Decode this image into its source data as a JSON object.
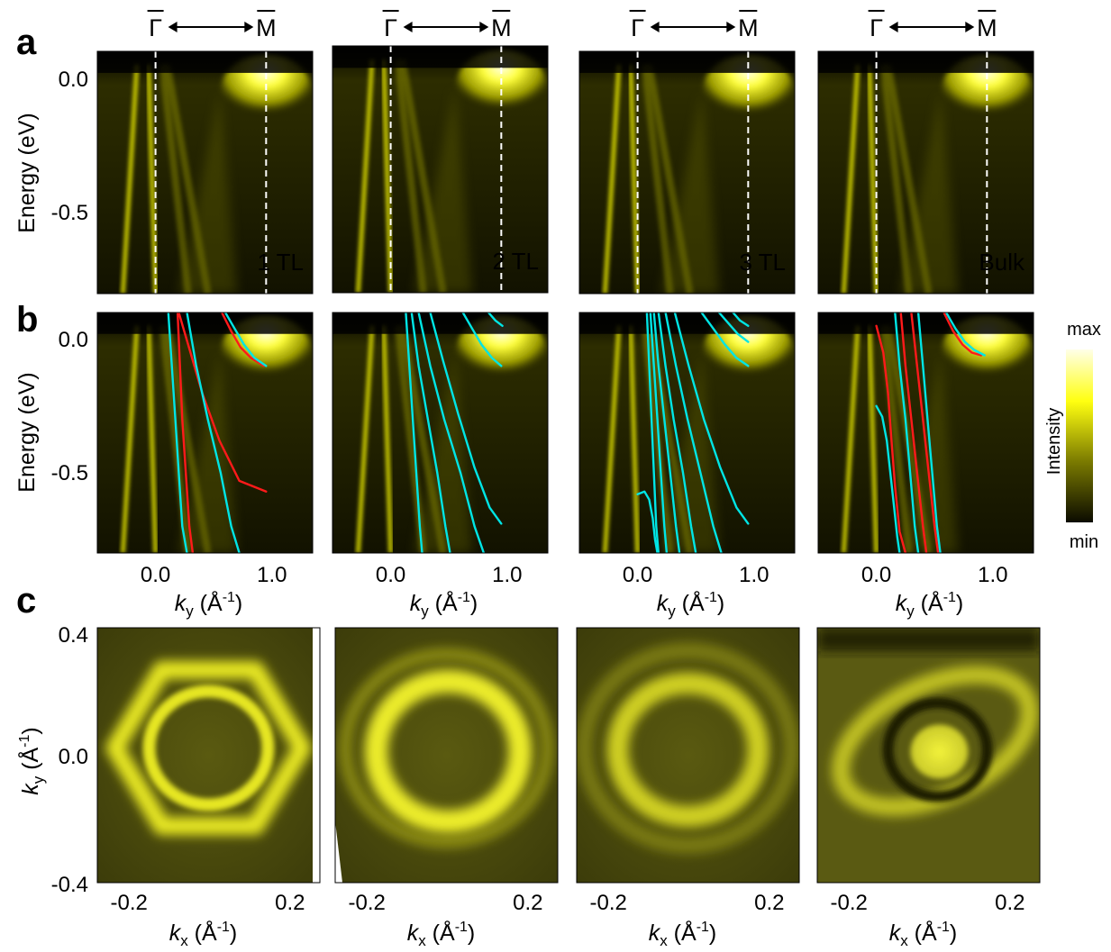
{
  "panel_labels": [
    "a",
    "b",
    "c"
  ],
  "symmetry_points": {
    "gamma": "Γ",
    "m": "M"
  },
  "samples": [
    "1 TL",
    "2 TL",
    "3 TL",
    "Bulk"
  ],
  "axes": {
    "energy_label": "Energy (eV)",
    "energy_ticks": [
      "0.0",
      "-0.5"
    ],
    "ky_symbol": "k",
    "ky_sub": "y",
    "kx_symbol": "k",
    "kx_sub": "x",
    "k_unit_open": " (Å",
    "k_unit_exp": "-1",
    "k_unit_close": ")",
    "ky_ticks": [
      "0.0",
      "1.0"
    ],
    "kx_ticks": [
      "-0.2",
      "0.2"
    ],
    "ky_map_ticks": [
      "0.4",
      "0.0",
      "-0.4"
    ]
  },
  "colorbar": {
    "max": "max",
    "min": "min",
    "label": "Intensity",
    "colors": [
      "#0b0b00",
      "#7a7a00",
      "#ffff10",
      "#ffffe8"
    ]
  },
  "chart_data": [
    {
      "type": "heatmap",
      "panel": "a",
      "title": "",
      "xlabel": "ky (Å-1)",
      "ylabel": "Energy (eV)",
      "xlim": [
        -0.5,
        1.35
      ],
      "ylim": [
        -0.8,
        0.1
      ],
      "samples": [
        "1 TL",
        "2 TL",
        "3 TL",
        "Bulk"
      ],
      "markers": [
        {
          "label": "Γ",
          "x": 0.0
        },
        {
          "label": "M",
          "x": 0.95
        }
      ]
    },
    {
      "type": "line",
      "panel": "b",
      "title": "",
      "xlabel": "ky (Å-1)",
      "ylabel": "Energy (eV)",
      "xlim": [
        -0.5,
        1.35
      ],
      "ylim": [
        -0.8,
        0.1
      ],
      "background": "ARPES intensity heatmap",
      "subplots": [
        {
          "sample": "1 TL",
          "series": [
            {
              "color": "#00e5e5",
              "x": [
                0.11,
                0.14,
                0.17,
                0.2,
                0.23,
                0.27
              ],
              "y": [
                0.1,
                -0.1,
                -0.3,
                -0.5,
                -0.7,
                -0.8
              ]
            },
            {
              "color": "#ff1a1a",
              "x": [
                0.19,
                0.21,
                0.23,
                0.26,
                0.29,
                0.32
              ],
              "y": [
                0.1,
                -0.1,
                -0.3,
                -0.5,
                -0.7,
                -0.8
              ]
            },
            {
              "color": "#ff1a1a",
              "x": [
                0.2,
                0.3,
                0.4,
                0.55,
                0.72,
                0.95
              ],
              "y": [
                0.1,
                -0.05,
                -0.2,
                -0.38,
                -0.53,
                -0.57
              ]
            },
            {
              "color": "#00e5e5",
              "x": [
                0.27,
                0.35,
                0.45,
                0.56,
                0.65,
                0.72
              ],
              "y": [
                0.1,
                -0.1,
                -0.3,
                -0.5,
                -0.7,
                -0.8
              ]
            },
            {
              "color": "#ff1a1a",
              "x": [
                0.57,
                0.65,
                0.73,
                0.82,
                0.93
              ],
              "y": [
                0.1,
                0.03,
                -0.03,
                -0.07,
                -0.1
              ]
            },
            {
              "color": "#00e5e5",
              "x": [
                0.6,
                0.68,
                0.76,
                0.85,
                0.95
              ],
              "y": [
                0.1,
                0.04,
                -0.02,
                -0.07,
                -0.1
              ]
            }
          ]
        },
        {
          "sample": "2 TL",
          "series": [
            {
              "color": "#00e5e5",
              "x": [
                0.13,
                0.16,
                0.19,
                0.22,
                0.25,
                0.27
              ],
              "y": [
                0.1,
                -0.1,
                -0.3,
                -0.5,
                -0.7,
                -0.8
              ]
            },
            {
              "color": "#00e5e5",
              "x": [
                0.18,
                0.24,
                0.32,
                0.4,
                0.47,
                0.51
              ],
              "y": [
                0.1,
                -0.1,
                -0.3,
                -0.5,
                -0.7,
                -0.8
              ]
            },
            {
              "color": "#00e5e5",
              "x": [
                0.24,
                0.34,
                0.46,
                0.6,
                0.72,
                0.8
              ],
              "y": [
                0.1,
                -0.1,
                -0.3,
                -0.5,
                -0.7,
                -0.8
              ]
            },
            {
              "color": "#00e5e5",
              "x": [
                0.34,
                0.45,
                0.58,
                0.72,
                0.85,
                0.95
              ],
              "y": [
                0.1,
                -0.08,
                -0.28,
                -0.48,
                -0.63,
                -0.69
              ]
            },
            {
              "color": "#00e5e5",
              "x": [
                0.62,
                0.7,
                0.78,
                0.87,
                0.95
              ],
              "y": [
                0.1,
                0.04,
                -0.02,
                -0.07,
                -0.1
              ]
            },
            {
              "color": "#00e5e5",
              "x": [
                0.84,
                0.9,
                0.96
              ],
              "y": [
                0.1,
                0.07,
                0.05
              ]
            }
          ]
        },
        {
          "sample": "3 TL",
          "series": [
            {
              "color": "#00e5e5",
              "x": [
                0.08,
                0.1,
                0.12,
                0.14,
                0.16,
                0.18
              ],
              "y": [
                0.1,
                -0.1,
                -0.3,
                -0.5,
                -0.7,
                -0.8
              ]
            },
            {
              "color": "#00e5e5",
              "x": [
                0.11,
                0.14,
                0.17,
                0.2,
                0.23,
                0.25
              ],
              "y": [
                0.1,
                -0.1,
                -0.3,
                -0.5,
                -0.7,
                -0.8
              ]
            },
            {
              "color": "#00e5e5",
              "x": [
                0.14,
                0.18,
                0.23,
                0.28,
                0.33,
                0.36
              ],
              "y": [
                0.1,
                -0.1,
                -0.3,
                -0.5,
                -0.7,
                -0.8
              ]
            },
            {
              "color": "#00e5e5",
              "x": [
                0.18,
                0.24,
                0.31,
                0.39,
                0.46,
                0.5
              ],
              "y": [
                0.1,
                -0.1,
                -0.3,
                -0.5,
                -0.7,
                -0.8
              ]
            },
            {
              "color": "#00e5e5",
              "x": [
                0.24,
                0.33,
                0.43,
                0.54,
                0.65,
                0.72
              ],
              "y": [
                0.1,
                -0.1,
                -0.3,
                -0.5,
                -0.7,
                -0.8
              ]
            },
            {
              "color": "#00e5e5",
              "x": [
                0.32,
                0.44,
                0.57,
                0.71,
                0.85,
                0.95
              ],
              "y": [
                0.1,
                -0.1,
                -0.3,
                -0.48,
                -0.63,
                -0.69
              ]
            },
            {
              "color": "#00e5e5",
              "x": [
                0.0,
                0.06,
                0.1,
                0.13,
                0.15,
                0.17
              ],
              "y": [
                -0.58,
                -0.57,
                -0.6,
                -0.67,
                -0.75,
                -0.8
              ]
            },
            {
              "color": "#00e5e5",
              "x": [
                0.55,
                0.65,
                0.75,
                0.85,
                0.95
              ],
              "y": [
                0.1,
                0.04,
                -0.02,
                -0.07,
                -0.1
              ]
            },
            {
              "color": "#00e5e5",
              "x": [
                0.7,
                0.78,
                0.86,
                0.95
              ],
              "y": [
                0.1,
                0.06,
                0.02,
                -0.01
              ]
            },
            {
              "color": "#00e5e5",
              "x": [
                0.82,
                0.88,
                0.95
              ],
              "y": [
                0.1,
                0.07,
                0.05
              ]
            }
          ]
        },
        {
          "sample": "Bulk",
          "series": [
            {
              "color": "#ff1a1a",
              "x": [
                0.0,
                0.06,
                0.1,
                0.13,
                0.16,
                0.2,
                0.25
              ],
              "y": [
                0.05,
                -0.05,
                -0.2,
                -0.38,
                -0.55,
                -0.72,
                -0.8
              ]
            },
            {
              "color": "#00e5e5",
              "x": [
                0.0,
                0.05,
                0.09,
                0.12,
                0.15,
                0.18,
                0.2
              ],
              "y": [
                -0.25,
                -0.29,
                -0.38,
                -0.5,
                -0.62,
                -0.74,
                -0.8
              ]
            },
            {
              "color": "#00e5e5",
              "x": [
                0.16,
                0.2,
                0.25,
                0.29,
                0.33,
                0.36
              ],
              "y": [
                0.1,
                -0.1,
                -0.3,
                -0.5,
                -0.7,
                -0.8
              ]
            },
            {
              "color": "#ff1a1a",
              "x": [
                0.21,
                0.25,
                0.3,
                0.35,
                0.4,
                0.43
              ],
              "y": [
                0.1,
                -0.1,
                -0.3,
                -0.5,
                -0.7,
                -0.8
              ]
            },
            {
              "color": "#ff1a1a",
              "x": [
                0.3,
                0.35,
                0.4,
                0.45,
                0.5,
                0.53
              ],
              "y": [
                0.1,
                -0.1,
                -0.3,
                -0.5,
                -0.7,
                -0.8
              ]
            },
            {
              "color": "#00e5e5",
              "x": [
                0.36,
                0.4,
                0.44,
                0.48,
                0.52,
                0.55
              ],
              "y": [
                0.1,
                -0.1,
                -0.3,
                -0.5,
                -0.7,
                -0.8
              ]
            },
            {
              "color": "#ff1a1a",
              "x": [
                0.58,
                0.66,
                0.74,
                0.82,
                0.9
              ],
              "y": [
                0.1,
                0.03,
                -0.02,
                -0.05,
                -0.06
              ]
            },
            {
              "color": "#00e5e5",
              "x": [
                0.6,
                0.68,
                0.76,
                0.84,
                0.93
              ],
              "y": [
                0.1,
                0.04,
                -0.01,
                -0.04,
                -0.06
              ]
            }
          ]
        }
      ]
    },
    {
      "type": "heatmap",
      "panel": "c",
      "title": "",
      "xlabel": "kx (Å-1)",
      "ylabel": "ky (Å-1)",
      "xlim": [
        -0.3,
        0.3
      ],
      "ylim": [
        -0.4,
        0.4
      ],
      "samples": [
        "1 TL",
        "2 TL",
        "3 TL",
        "Bulk"
      ]
    }
  ]
}
